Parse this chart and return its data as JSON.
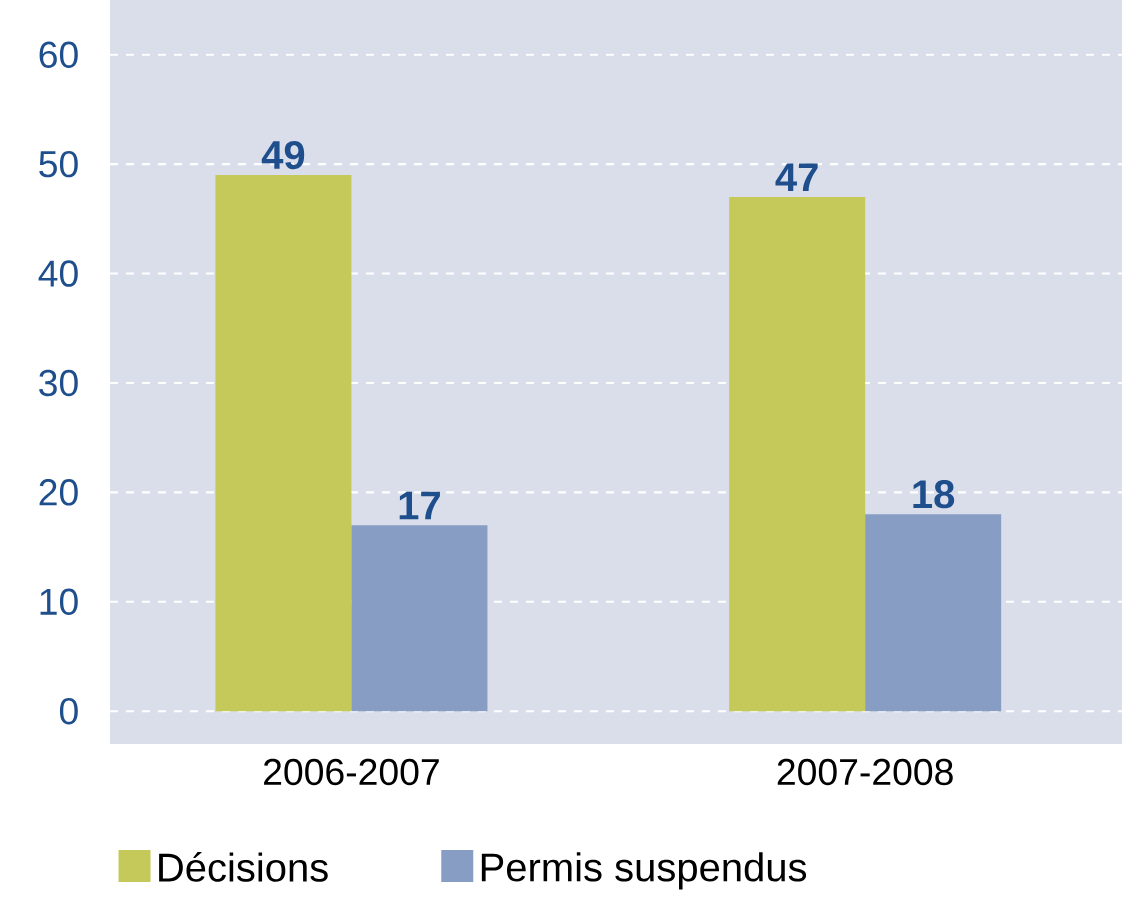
{
  "chart_data": {
    "type": "bar",
    "categories": [
      "2006-2007",
      "2007-2008"
    ],
    "series": [
      {
        "name": "Décisions",
        "color": "#c5c95a",
        "values": [
          49,
          47
        ]
      },
      {
        "name": "Permis suspendus",
        "color": "#879dc3",
        "values": [
          17,
          18
        ]
      }
    ],
    "ylim": [
      -3,
      65
    ],
    "yticks": [
      0,
      10,
      20,
      30,
      40,
      50,
      60
    ],
    "grid": "y",
    "legend": "bottom",
    "data_labels": true
  }
}
